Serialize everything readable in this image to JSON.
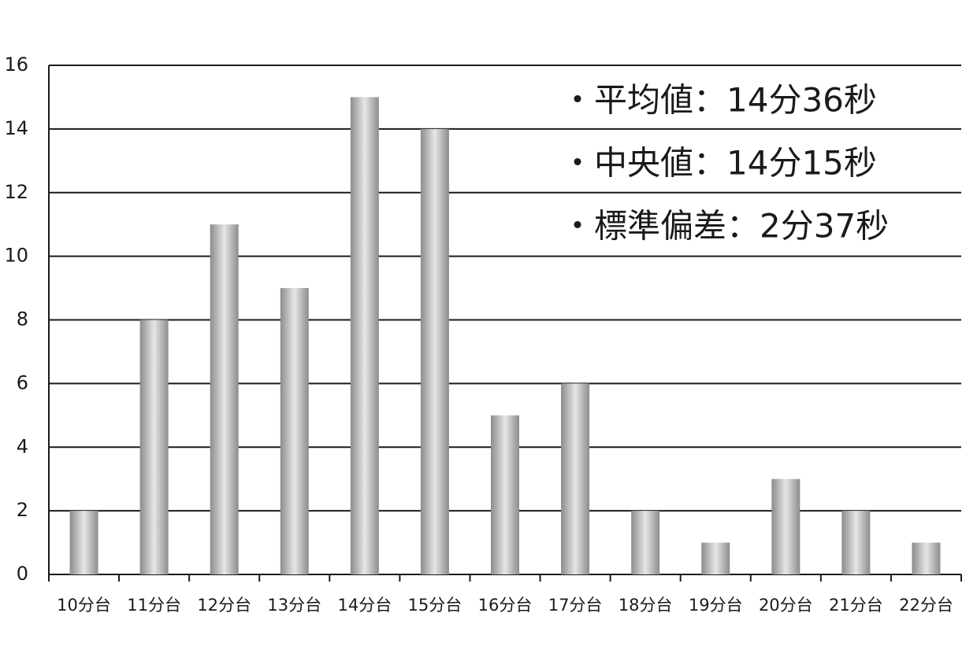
{
  "chart_data": {
    "type": "bar",
    "categories": [
      "10分台",
      "11分台",
      "12分台",
      "13分台",
      "14分台",
      "15分台",
      "16分台",
      "17分台",
      "18分台",
      "19分台",
      "20分台",
      "21分台",
      "22分台"
    ],
    "values": [
      2,
      8,
      11,
      9,
      15,
      14,
      5,
      6,
      2,
      1,
      3,
      2,
      1
    ],
    "color": "#8c8c8c",
    "ylim": [
      0,
      16
    ],
    "yticks": [
      0,
      2,
      4,
      6,
      8,
      10,
      12,
      14,
      16
    ],
    "grid": true,
    "annotations": [
      "・平均値：14分36秒",
      "・中央値：14分15秒",
      "・標準偏差：2分37秒"
    ]
  }
}
